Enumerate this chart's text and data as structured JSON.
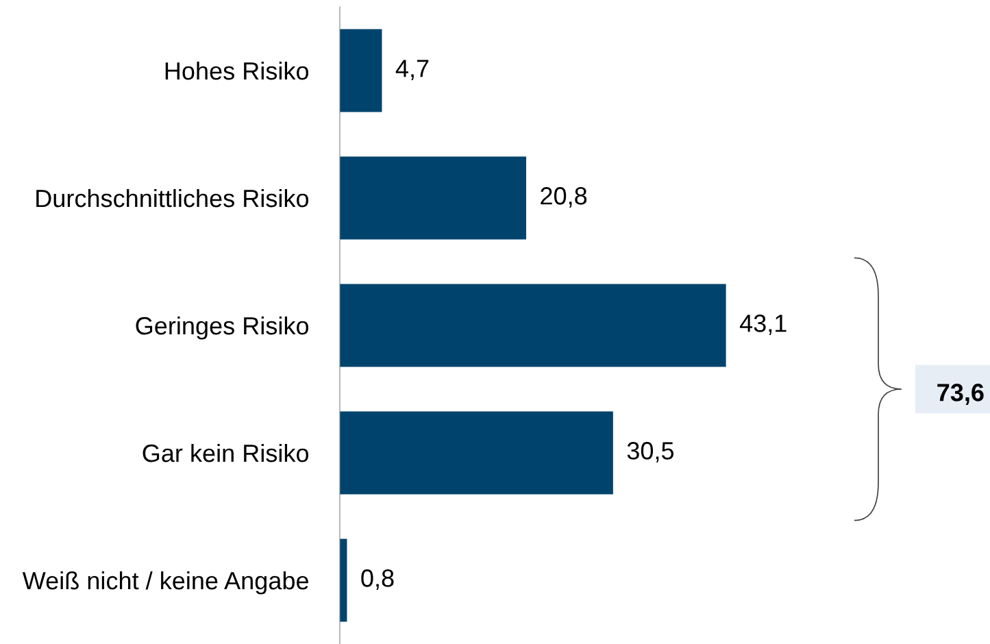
{
  "chart_data": {
    "type": "bar",
    "orientation": "horizontal",
    "categories": [
      "Hohes Risiko",
      "Durchschnittliches Risiko",
      "Geringes Risiko",
      "Gar kein Risiko",
      "Weiß nicht / keine Angabe"
    ],
    "values": [
      4.7,
      20.8,
      43.1,
      30.5,
      0.8
    ],
    "value_labels": [
      "4,7",
      "20,8",
      "43,1",
      "30,5",
      "0,8"
    ],
    "colors": [
      "#00446e",
      "#00446e",
      "#00446e",
      "#00446e",
      "#00446e"
    ],
    "tick_labels": "y",
    "grid": false,
    "legend": false,
    "annotations": [
      "73,6"
    ]
  }
}
